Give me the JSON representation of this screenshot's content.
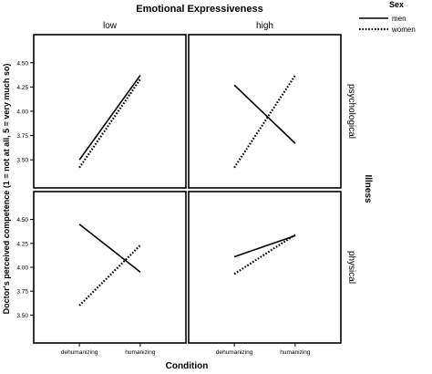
{
  "chart_data": {
    "type": "line",
    "title": "Emotional Expressiveness",
    "xlabel": "Condition",
    "ylabel": "Doctor's perceived competence (1 = not at all, 5 = very much so)",
    "column_labels": [
      "low",
      "high"
    ],
    "row_labels": [
      "psychological",
      "physical"
    ],
    "row_facet_title": "Illness",
    "legend": {
      "title": "Sex",
      "placement": "top-right",
      "entries": [
        "men",
        "women"
      ]
    },
    "categories": [
      "dehumanizing",
      "humanizing"
    ],
    "yticks": [
      "3.50",
      "3.75",
      "4.00",
      "4.25",
      "4.50"
    ],
    "ylim": [
      3.38,
      4.62
    ],
    "panels": [
      {
        "column": "low",
        "row": "psychological",
        "series": [
          {
            "name": "men",
            "values": [
              3.5,
              4.37
            ]
          },
          {
            "name": "women",
            "values": [
              3.42,
              4.33
            ]
          }
        ]
      },
      {
        "column": "high",
        "row": "psychological",
        "series": [
          {
            "name": "men",
            "values": [
              4.27,
              3.67
            ]
          },
          {
            "name": "women",
            "values": [
              3.42,
              4.37
            ]
          }
        ]
      },
      {
        "column": "low",
        "row": "physical",
        "series": [
          {
            "name": "men",
            "values": [
              4.45,
              3.95
            ]
          },
          {
            "name": "women",
            "values": [
              3.6,
              4.23
            ]
          }
        ]
      },
      {
        "column": "high",
        "row": "physical",
        "series": [
          {
            "name": "men",
            "values": [
              4.11,
              4.33
            ]
          },
          {
            "name": "women",
            "values": [
              3.93,
              4.34
            ]
          }
        ]
      }
    ],
    "series_styles": {
      "men": "solid",
      "women": "dotted"
    },
    "grid": false
  }
}
